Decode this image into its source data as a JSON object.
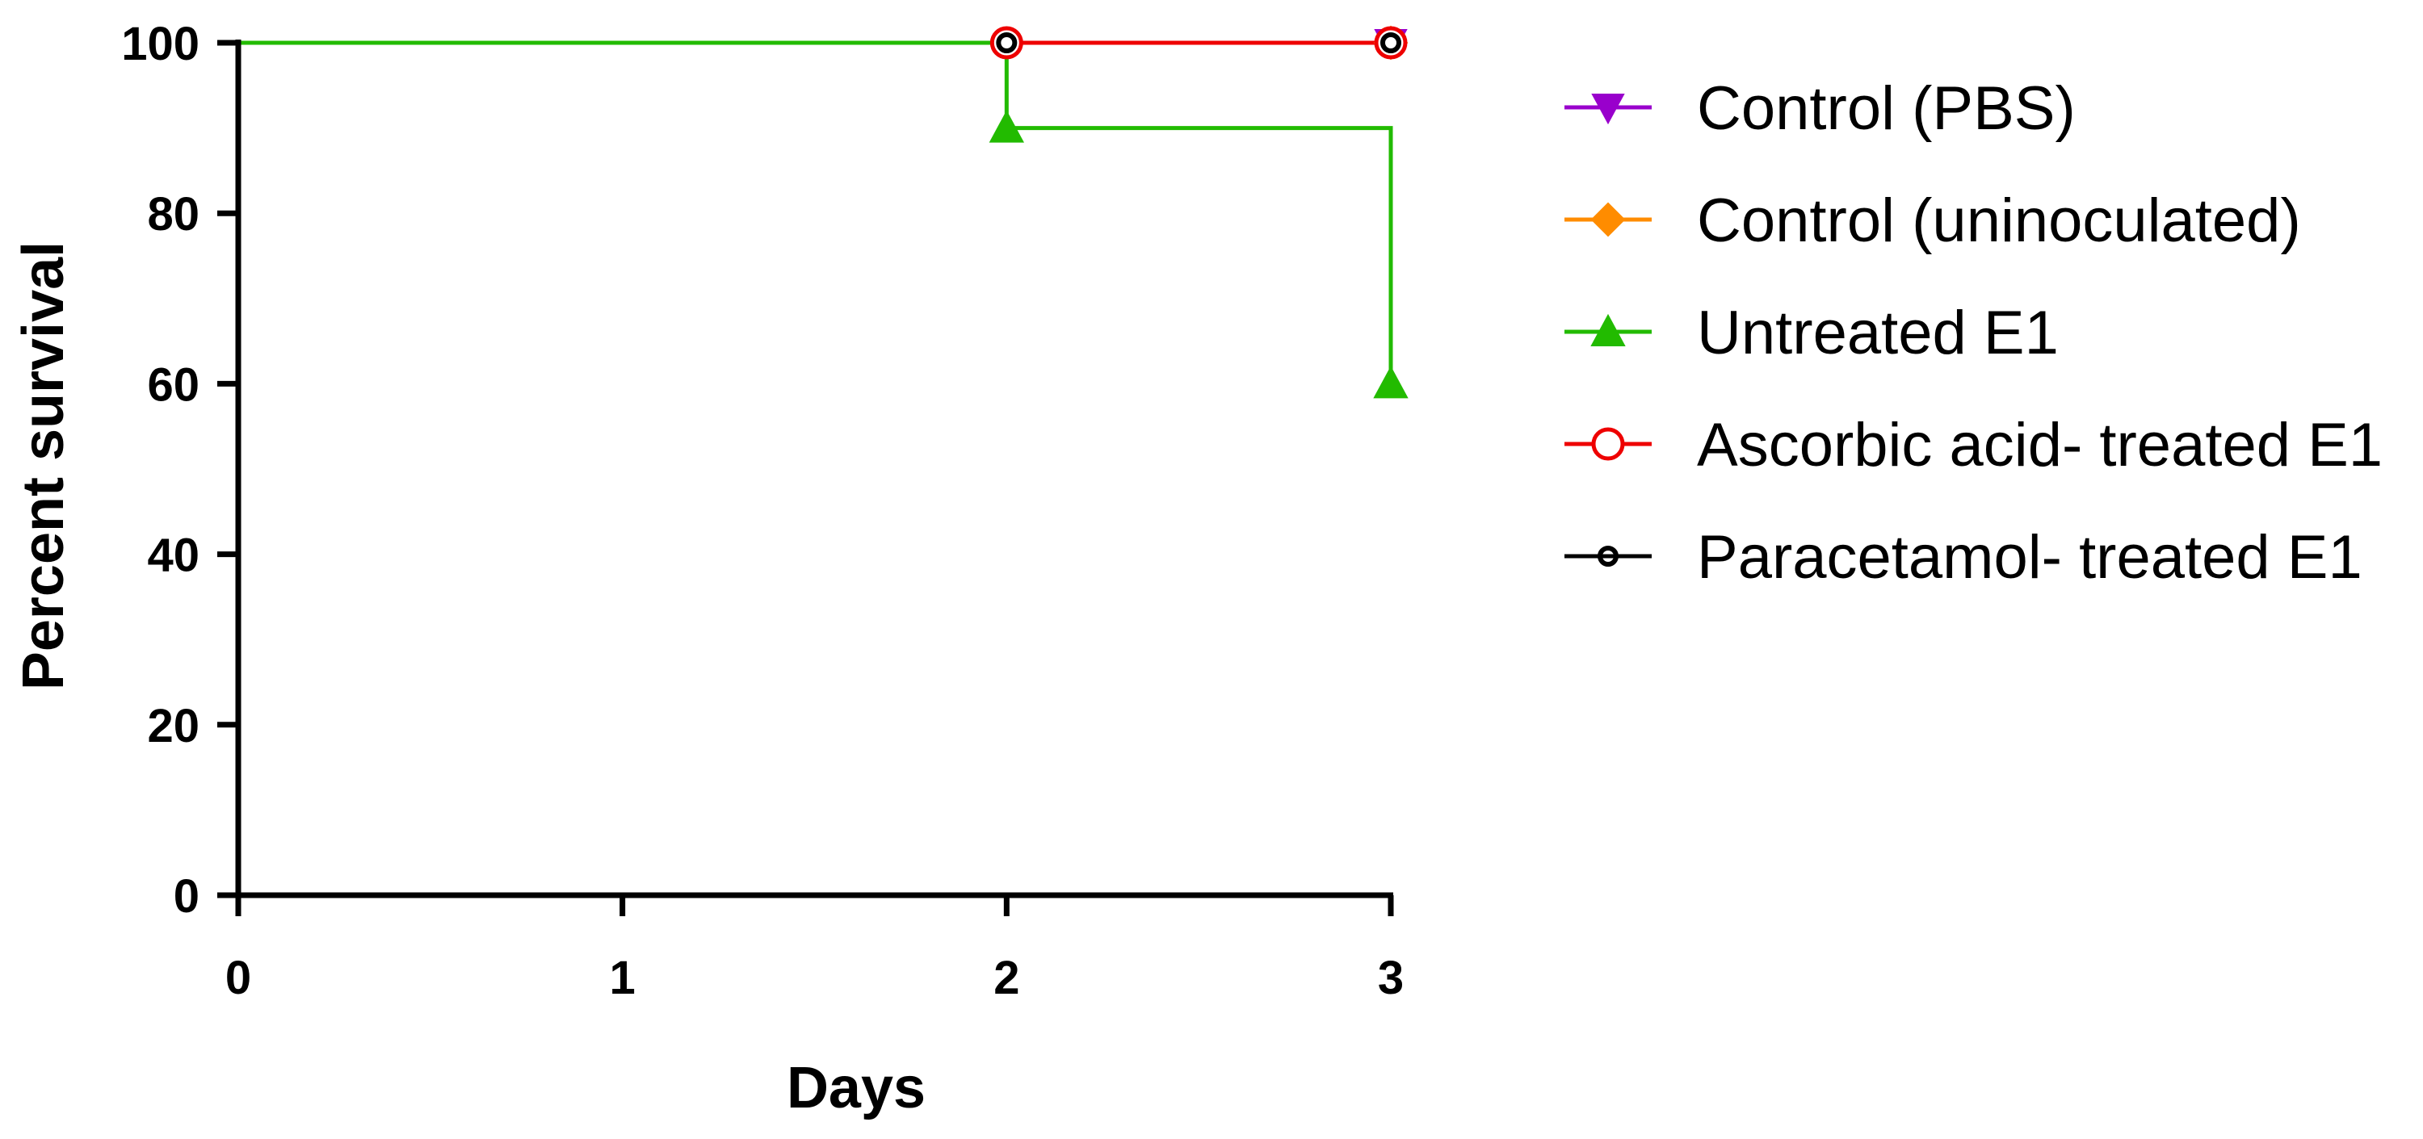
{
  "chart_data": {
    "type": "line",
    "xlabel": "Days",
    "ylabel": "Percent survival",
    "xlim": [
      0,
      3
    ],
    "ylim": [
      0,
      100
    ],
    "xticks": [
      "0",
      "1",
      "2",
      "3"
    ],
    "yticks": [
      "0",
      "20",
      "40",
      "60",
      "80",
      "100"
    ],
    "grid": false,
    "legend_position": "right",
    "series": [
      {
        "name": "Control (PBS)",
        "color": "#9900CC",
        "marker": "triangle-down",
        "filled": true,
        "step_points": [
          [
            0,
            100
          ],
          [
            3,
            100
          ]
        ],
        "markers": [
          [
            3,
            100
          ]
        ]
      },
      {
        "name": "Control (uninoculated)",
        "color": "#FF8C00",
        "marker": "diamond",
        "filled": true,
        "step_points": [
          [
            0,
            100
          ],
          [
            3,
            100
          ]
        ],
        "markers": [
          [
            3,
            100
          ]
        ]
      },
      {
        "name": "Untreated E1",
        "color": "#22BB00",
        "marker": "triangle-up",
        "filled": true,
        "step_points": [
          [
            0,
            100
          ],
          [
            2,
            100
          ],
          [
            2,
            90
          ],
          [
            3,
            90
          ],
          [
            3,
            60
          ]
        ],
        "markers": [
          [
            2,
            90
          ],
          [
            3,
            60
          ]
        ]
      },
      {
        "name": "Ascorbic acid- treated E1",
        "color": "#EE0000",
        "marker": "circle",
        "filled": false,
        "step_points": [
          [
            2,
            100
          ],
          [
            3,
            100
          ]
        ],
        "markers": [
          [
            2,
            100
          ],
          [
            3,
            100
          ]
        ]
      },
      {
        "name": "Paracetamol- treated E1",
        "color": "#000000",
        "marker": "circle-small",
        "filled": false,
        "step_points": [],
        "markers": [
          [
            2,
            100
          ],
          [
            3,
            100
          ]
        ]
      }
    ]
  }
}
